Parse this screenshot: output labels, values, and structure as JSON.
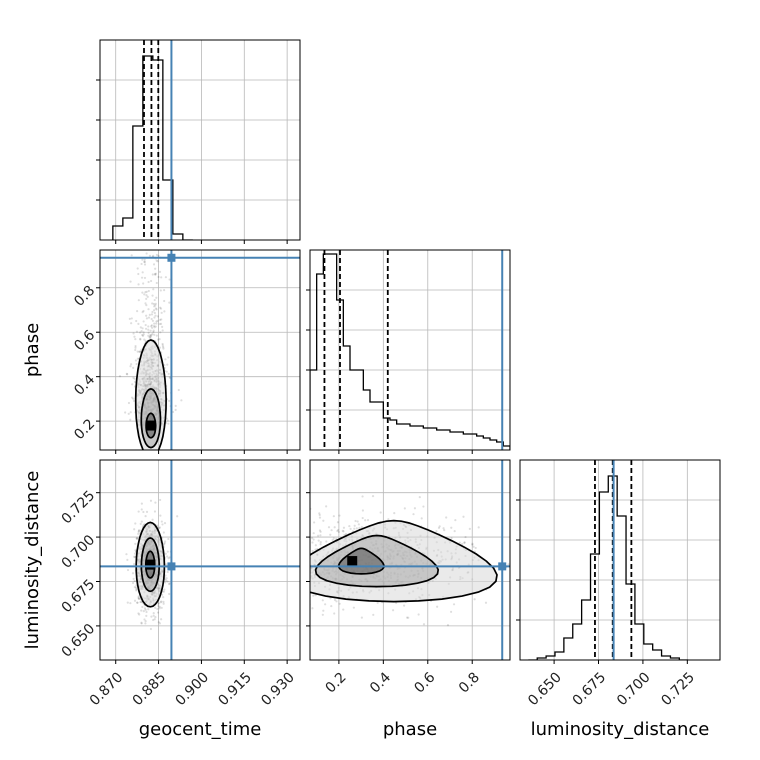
{
  "chart_data": {
    "type": "corner",
    "parameters": [
      "geocent_time",
      "phase",
      "luminosity_distance"
    ],
    "truths": {
      "geocent_time": 0.8895,
      "phase": 0.935,
      "luminosity_distance": 0.6835
    },
    "truth_color": "#4682b4",
    "quantile_lines": {
      "geocent_time": [
        0.8799,
        0.8825,
        0.8849
      ],
      "phase": [
        0.135,
        0.205,
        0.42
      ],
      "luminosity_distance": [
        0.673,
        0.683,
        0.6935
      ]
    },
    "axes": {
      "geocent_time": {
        "range": [
          0.8645,
          0.9345
        ],
        "ticks": [
          0.87,
          0.885,
          0.9,
          0.915,
          0.93
        ],
        "tick_labels": [
          "0.870",
          "0.885",
          "0.900",
          "0.915",
          "0.930"
        ],
        "label": "geocent_time"
      },
      "phase": {
        "range": [
          0.07,
          0.97
        ],
        "ticks": [
          0.2,
          0.4,
          0.6,
          0.8
        ],
        "tick_labels": [
          "0.2",
          "0.4",
          "0.6",
          "0.8"
        ],
        "label": "phase"
      },
      "luminosity_distance": {
        "range": [
          0.6308,
          0.7434
        ],
        "ticks": [
          0.65,
          0.675,
          0.7,
          0.725
        ],
        "tick_labels": [
          "0.650",
          "0.675",
          "0.700",
          "0.725"
        ],
        "label": "luminosity_distance"
      }
    },
    "histograms": {
      "geocent_time": {
        "edges": [
          0.869,
          0.8725,
          0.876,
          0.8795,
          0.883,
          0.8865,
          0.89,
          0.8935,
          0.897
        ],
        "counts": [
          0.07,
          0.11,
          0.57,
          0.92,
          0.9,
          0.3,
          0.03,
          0.0
        ]
      },
      "phase": {
        "edges": [
          0.07,
          0.1,
          0.13,
          0.16,
          0.19,
          0.22,
          0.25,
          0.28,
          0.31,
          0.34,
          0.37,
          0.4,
          0.43,
          0.46,
          0.49,
          0.52,
          0.55,
          0.58,
          0.61,
          0.64,
          0.67,
          0.7,
          0.73,
          0.76,
          0.79,
          0.82,
          0.85,
          0.88,
          0.91,
          0.94,
          0.97
        ],
        "counts": [
          0.4,
          0.88,
          0.98,
          0.98,
          0.75,
          0.52,
          0.4,
          0.4,
          0.3,
          0.24,
          0.24,
          0.16,
          0.15,
          0.13,
          0.13,
          0.12,
          0.12,
          0.11,
          0.11,
          0.1,
          0.1,
          0.09,
          0.09,
          0.08,
          0.08,
          0.07,
          0.06,
          0.05,
          0.04,
          0.02
        ]
      },
      "luminosity_distance": {
        "edges": [
          0.6355,
          0.6405,
          0.6455,
          0.6505,
          0.6555,
          0.6605,
          0.6655,
          0.6705,
          0.6755,
          0.6805,
          0.6855,
          0.6905,
          0.6955,
          0.7005,
          0.7055,
          0.7105,
          0.7155,
          0.7205,
          0.7255
        ],
        "counts": [
          0.0,
          0.01,
          0.02,
          0.04,
          0.11,
          0.18,
          0.3,
          0.53,
          0.84,
          0.92,
          0.72,
          0.38,
          0.18,
          0.08,
          0.05,
          0.02,
          0.01,
          0.0
        ]
      }
    },
    "contours_2d": {
      "phase_vs_geocent_time": {
        "x": "geocent_time",
        "y": "phase",
        "center": [
          0.8823,
          0.18
        ],
        "sigma": [
          0.0028,
          0.11
        ],
        "levels": [
          0.4,
          1.0,
          1.6
        ]
      },
      "luminosity_distance_vs_geocent_time": {
        "x": "geocent_time",
        "y": "luminosity_distance",
        "center": [
          0.8821,
          0.6845
        ],
        "sigma": [
          0.0026,
          0.0125
        ],
        "levels": [
          0.4,
          1.0,
          1.6
        ]
      },
      "luminosity_distance_vs_phase": {
        "x": "phase",
        "y": "luminosity_distance",
        "center": [
          0.26,
          0.6865
        ],
        "sigma": [
          0.26,
          0.012
        ],
        "levels": [
          0.4,
          1.0,
          1.6
        ]
      }
    },
    "grid": true
  }
}
